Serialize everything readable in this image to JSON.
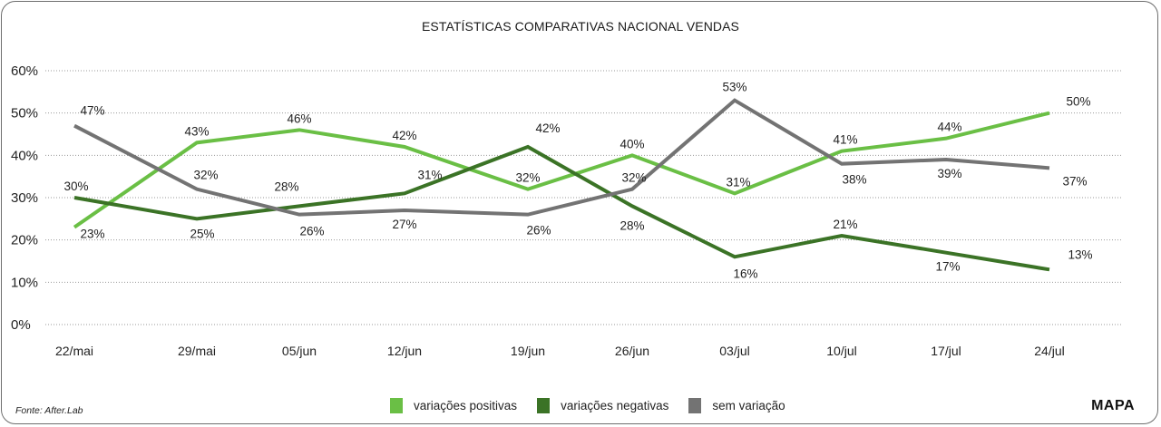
{
  "chart_data": {
    "type": "line",
    "title": "ESTATÍSTICAS COMPARATIVAS NACIONAL VENDAS",
    "xlabel": "",
    "ylabel": "",
    "ylim": [
      0,
      60
    ],
    "yticks": [
      0,
      10,
      20,
      30,
      40,
      50,
      60
    ],
    "ytick_labels": [
      "0%",
      "10%",
      "20%",
      "30%",
      "40%",
      "50%",
      "60%"
    ],
    "grid": true,
    "legend_position": "bottom-center",
    "categories": [
      "22/mai",
      "29/mai",
      "05/jun",
      "12/jun",
      "19/jun",
      "26/jun",
      "03/jul",
      "10/jul",
      "17/jul",
      "24/jul"
    ],
    "series": [
      {
        "name": "variações positivas",
        "color": "#6abf45",
        "values": [
          23,
          43,
          46,
          42,
          32,
          40,
          31,
          41,
          44,
          50
        ],
        "labels": [
          "23%",
          "43%",
          "46%",
          "42%",
          "32%",
          "40%",
          "31%",
          "41%",
          "44%",
          "50%"
        ]
      },
      {
        "name": "variações negativas",
        "color": "#3b7326",
        "values": [
          30,
          25,
          28,
          31,
          42,
          28,
          16,
          21,
          17,
          13
        ],
        "labels": [
          "30%",
          "25%",
          "28%",
          "31%",
          "42%",
          "28%",
          "16%",
          "21%",
          "17%",
          "13%"
        ]
      },
      {
        "name": "sem variação",
        "color": "#737373",
        "values": [
          47,
          32,
          26,
          27,
          26,
          32,
          53,
          38,
          39,
          37
        ],
        "labels": [
          "47%",
          "32%",
          "26%",
          "27%",
          "26%",
          "32%",
          "53%",
          "38%",
          "39%",
          "37%"
        ]
      }
    ]
  },
  "footer": {
    "source": "Fonte: After.Lab",
    "brand": "MAPA"
  }
}
